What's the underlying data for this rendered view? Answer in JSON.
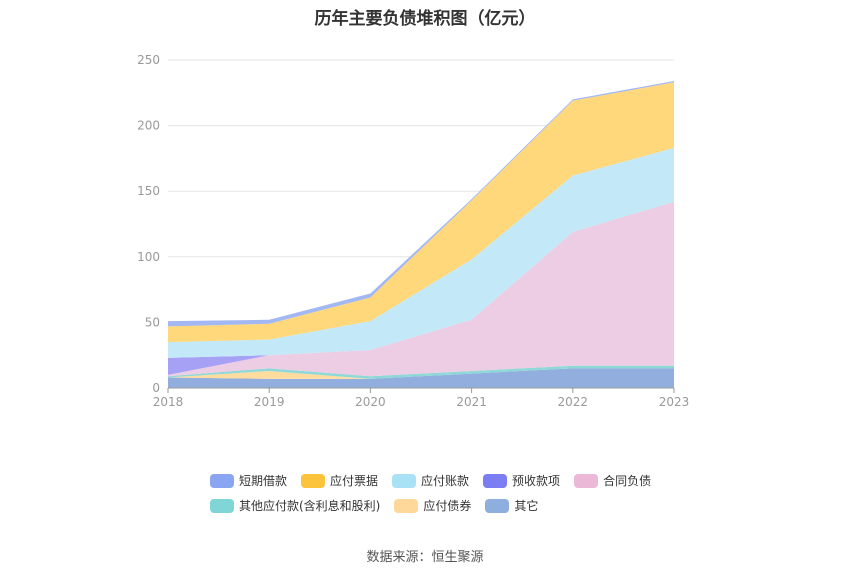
{
  "chart_data": {
    "type": "area",
    "title": "历年主要负债堆积图（亿元）",
    "x": [
      "2018",
      "2019",
      "2020",
      "2021",
      "2022",
      "2023"
    ],
    "ylim": [
      0,
      250
    ],
    "yticks": [
      0,
      50,
      100,
      150,
      200,
      250
    ],
    "stacked": true,
    "grid": true,
    "legend_position": "bottom",
    "series": [
      {
        "name": "其它",
        "color": "#92aede",
        "values": [
          8,
          7,
          7,
          11,
          15,
          15
        ]
      },
      {
        "name": "应付债券",
        "color": "#fedca0",
        "values": [
          0,
          6,
          0,
          0,
          0,
          0
        ]
      },
      {
        "name": "其他应付款(含利息和股利)",
        "color": "#8fd8d8",
        "values": [
          1,
          2,
          2,
          2,
          2,
          2
        ]
      },
      {
        "name": "合同负债",
        "color": "#eccde4",
        "values": [
          1,
          10,
          20,
          39,
          102,
          125
        ]
      },
      {
        "name": "预收款项",
        "color": "#a7a1f5",
        "values": [
          13,
          0,
          0,
          0,
          0,
          0
        ]
      },
      {
        "name": "应付账款",
        "color": "#c3e8f8",
        "values": [
          12,
          12,
          22,
          46,
          43,
          41
        ]
      },
      {
        "name": "应付票据",
        "color": "#fed87a",
        "values": [
          12,
          12,
          18,
          45,
          57,
          50
        ]
      },
      {
        "name": "短期借款",
        "color": "#a3b8f2",
        "values": [
          4,
          3,
          3,
          1,
          1,
          1
        ]
      }
    ]
  },
  "legend": {
    "row1": [
      {
        "label": "短期借款",
        "color": "#8aa6f2"
      },
      {
        "label": "应付票据",
        "color": "#fcc33d"
      },
      {
        "label": "应付账款",
        "color": "#a9e1f7"
      },
      {
        "label": "预收款项",
        "color": "#7b7ef2"
      },
      {
        "label": "合同负债",
        "color": "#ebb8d8"
      }
    ],
    "row2": [
      {
        "label": "其他应付款(含利息和股利)",
        "color": "#80d6d6"
      },
      {
        "label": "应付债券",
        "color": "#fdd89a"
      },
      {
        "label": "其它",
        "color": "#8eaede"
      }
    ]
  },
  "source": "数据来源：恒生聚源"
}
